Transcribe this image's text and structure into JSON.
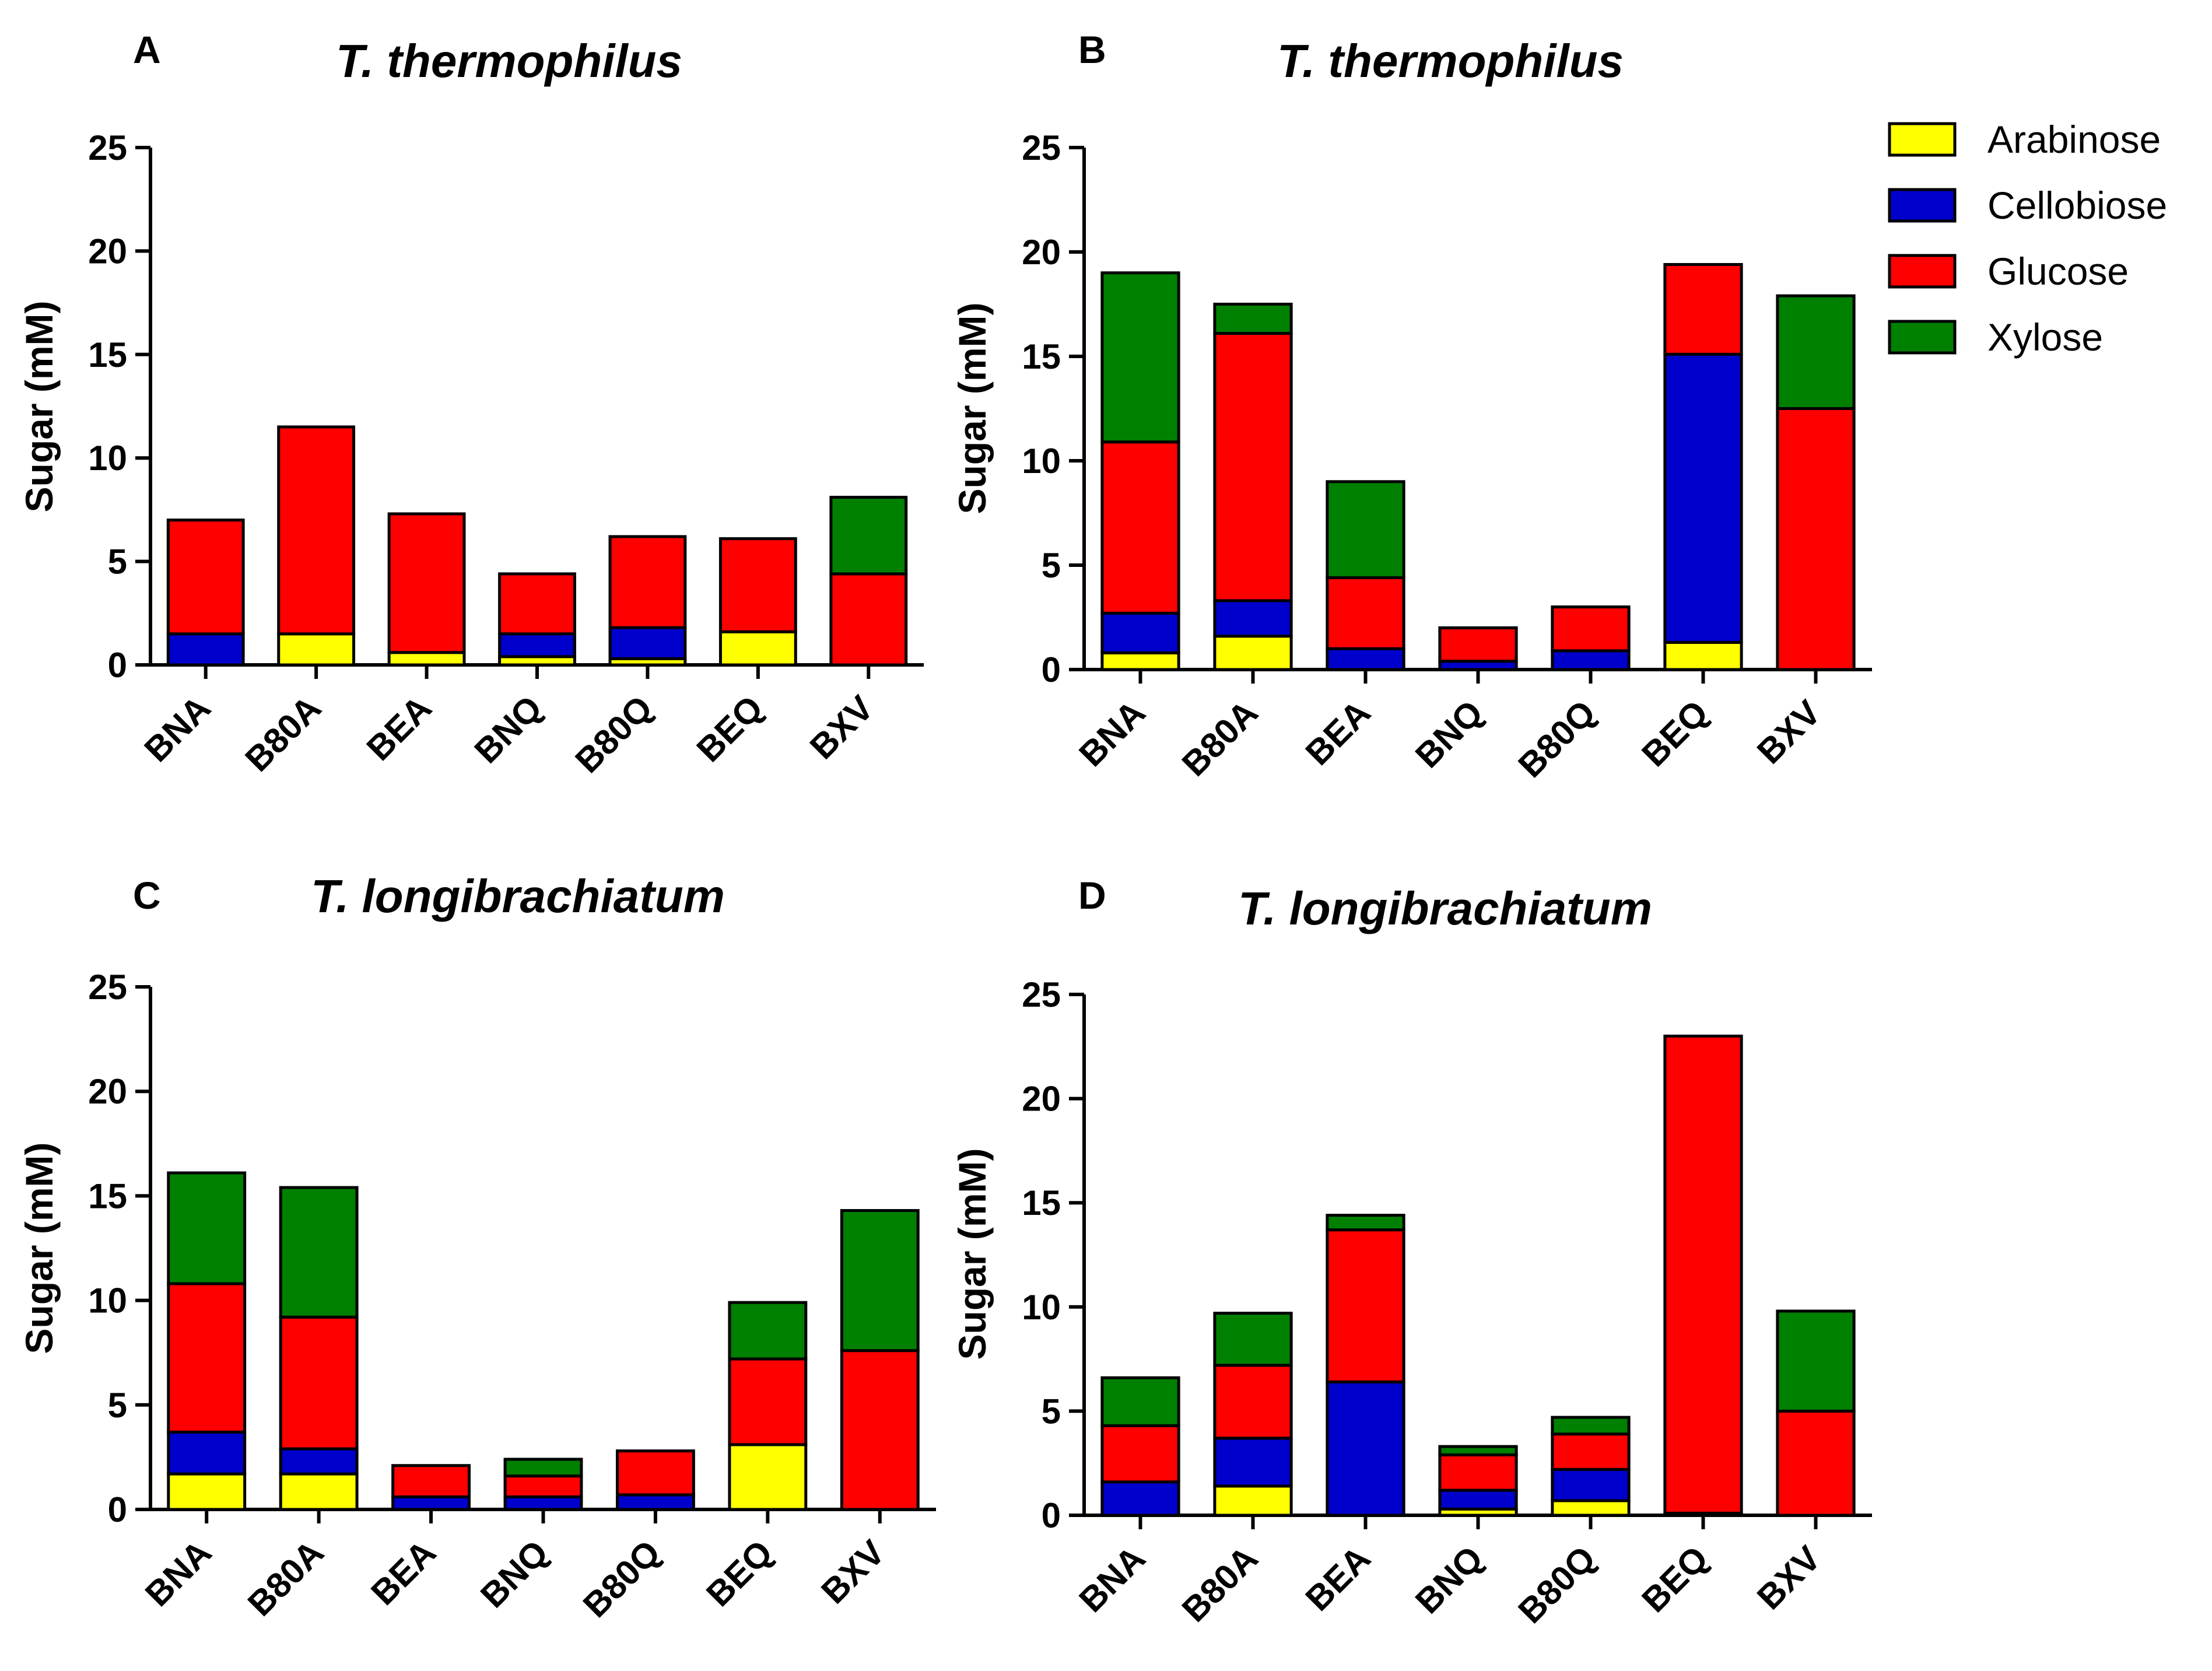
{
  "chart_data": [
    {
      "panel": "A",
      "type": "bar",
      "stacked": true,
      "title": "T. thermophilus",
      "ylabel": "Sugar (mM)",
      "xlabel": "",
      "ylim": [
        0,
        25
      ],
      "yticks": [
        0,
        5,
        10,
        15,
        20,
        25
      ],
      "categories": [
        "BNA",
        "B80A",
        "BEA",
        "BNQ",
        "B80Q",
        "BEQ",
        "BXV"
      ],
      "series": [
        {
          "name": "Arabinose",
          "values": [
            0,
            1.5,
            0.6,
            0.4,
            0.3,
            1.6,
            0
          ]
        },
        {
          "name": "Cellobiose",
          "values": [
            1.5,
            0,
            0,
            1.1,
            1.5,
            0,
            0
          ]
        },
        {
          "name": "Glucose",
          "values": [
            5.5,
            10.0,
            6.7,
            2.9,
            4.4,
            4.5,
            4.4
          ]
        },
        {
          "name": "Xylose",
          "values": [
            0,
            0,
            0,
            0,
            0,
            0,
            3.7
          ]
        }
      ]
    },
    {
      "panel": "B",
      "type": "bar",
      "stacked": true,
      "title": "T. thermophilus",
      "ylabel": "Sugar (mM)",
      "xlabel": "",
      "ylim": [
        0,
        25
      ],
      "yticks": [
        0,
        5,
        10,
        15,
        20,
        25
      ],
      "categories": [
        "BNA",
        "B80A",
        "BEA",
        "BNQ",
        "B80Q",
        "BEQ",
        "BXV"
      ],
      "series": [
        {
          "name": "Arabinose",
          "values": [
            0.8,
            1.6,
            0,
            0,
            0,
            1.3,
            0
          ]
        },
        {
          "name": "Cellobiose",
          "values": [
            1.9,
            1.7,
            1.0,
            0.4,
            0.9,
            13.8,
            0
          ]
        },
        {
          "name": "Glucose",
          "values": [
            8.2,
            12.8,
            3.4,
            1.6,
            2.1,
            4.3,
            12.5
          ]
        },
        {
          "name": "Xylose",
          "values": [
            8.1,
            1.4,
            4.6,
            0,
            0,
            0,
            5.4
          ]
        }
      ]
    },
    {
      "panel": "C",
      "type": "bar",
      "stacked": true,
      "title": "T. longibrachiatum",
      "ylabel": "Sugar (mM)",
      "xlabel": "",
      "ylim": [
        0,
        25
      ],
      "yticks": [
        0,
        5,
        10,
        15,
        20,
        25
      ],
      "categories": [
        "BNA",
        "B80A",
        "BEA",
        "BNQ",
        "B80Q",
        "BEQ",
        "BXV"
      ],
      "series": [
        {
          "name": "Arabinose",
          "values": [
            1.7,
            1.7,
            0,
            0,
            0,
            3.1,
            0
          ]
        },
        {
          "name": "Cellobiose",
          "values": [
            2.0,
            1.2,
            0.6,
            0.6,
            0.7,
            0,
            0
          ]
        },
        {
          "name": "Glucose",
          "values": [
            7.1,
            6.3,
            1.5,
            1.0,
            2.1,
            4.1,
            7.6
          ]
        },
        {
          "name": "Xylose",
          "values": [
            5.3,
            6.2,
            0,
            0.8,
            0,
            2.7,
            6.7
          ]
        }
      ]
    },
    {
      "panel": "D",
      "type": "bar",
      "stacked": true,
      "title": "T. longibrachiatum",
      "ylabel": "Sugar (mM)",
      "xlabel": "",
      "ylim": [
        0,
        25
      ],
      "yticks": [
        0,
        5,
        10,
        15,
        20,
        25
      ],
      "categories": [
        "BNA",
        "B80A",
        "BEA",
        "BNQ",
        "B80Q",
        "BEQ",
        "BXV"
      ],
      "series": [
        {
          "name": "Arabinose",
          "values": [
            0,
            1.4,
            0,
            0.3,
            0.7,
            0,
            0
          ]
        },
        {
          "name": "Cellobiose",
          "values": [
            1.6,
            2.3,
            6.4,
            0.9,
            1.5,
            0.1,
            0
          ]
        },
        {
          "name": "Glucose",
          "values": [
            2.7,
            3.5,
            7.3,
            1.7,
            1.7,
            22.9,
            5.0
          ]
        },
        {
          "name": "Xylose",
          "values": [
            2.3,
            2.5,
            0.7,
            0.4,
            0.8,
            0,
            4.8
          ]
        }
      ]
    }
  ],
  "legend": {
    "position": "top-right",
    "items": [
      {
        "label": "Arabinose",
        "color": "#ffff00"
      },
      {
        "label": "Cellobiose",
        "color": "#0000cc"
      },
      {
        "label": "Glucose",
        "color": "#ff0000"
      },
      {
        "label": "Xylose",
        "color": "#008000"
      }
    ]
  }
}
